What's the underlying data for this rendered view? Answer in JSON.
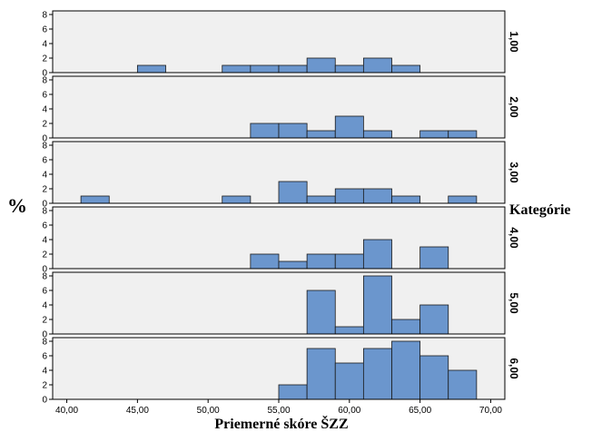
{
  "chart_data": {
    "type": "bar",
    "chart_kind": "histogram-panels",
    "ylabel": "%",
    "xlabel": "Priemerné skóre ŠZZ",
    "legend_title": "Kategórie",
    "xlim": [
      39,
      71
    ],
    "ylim": [
      0,
      8
    ],
    "bin_width": 2,
    "x_ticks": [
      40,
      45,
      50,
      55,
      60,
      65,
      70
    ],
    "x_tick_labels": [
      "40,00",
      "45,00",
      "50,00",
      "55,00",
      "60,00",
      "65,00",
      "70,00"
    ],
    "y_ticks": [
      0,
      2,
      4,
      6,
      8
    ],
    "y_tick_labels": [
      "0",
      "2",
      "4",
      "6",
      "8"
    ],
    "colors": {
      "bar_fill": "#6b96cd",
      "bar_stroke": "#1a1a1a",
      "panel_bg": "#f0f0f0",
      "panel_border": "#000000"
    },
    "panels": [
      {
        "label": "1,00",
        "bins": [
          {
            "x0": 45,
            "v": 1
          },
          {
            "x0": 51,
            "v": 1
          },
          {
            "x0": 53,
            "v": 1
          },
          {
            "x0": 55,
            "v": 1
          },
          {
            "x0": 57,
            "v": 2
          },
          {
            "x0": 59,
            "v": 1
          },
          {
            "x0": 61,
            "v": 2
          },
          {
            "x0": 63,
            "v": 1
          }
        ]
      },
      {
        "label": "2,00",
        "bins": [
          {
            "x0": 53,
            "v": 2
          },
          {
            "x0": 55,
            "v": 2
          },
          {
            "x0": 57,
            "v": 1
          },
          {
            "x0": 59,
            "v": 3
          },
          {
            "x0": 61,
            "v": 1
          },
          {
            "x0": 65,
            "v": 1
          },
          {
            "x0": 67,
            "v": 1
          }
        ]
      },
      {
        "label": "3,00",
        "bins": [
          {
            "x0": 41,
            "v": 1
          },
          {
            "x0": 51,
            "v": 1
          },
          {
            "x0": 55,
            "v": 3
          },
          {
            "x0": 57,
            "v": 1
          },
          {
            "x0": 59,
            "v": 2
          },
          {
            "x0": 61,
            "v": 2
          },
          {
            "x0": 63,
            "v": 1
          },
          {
            "x0": 67,
            "v": 1
          }
        ]
      },
      {
        "label": "4,00",
        "bins": [
          {
            "x0": 53,
            "v": 2
          },
          {
            "x0": 55,
            "v": 1
          },
          {
            "x0": 57,
            "v": 2
          },
          {
            "x0": 59,
            "v": 2
          },
          {
            "x0": 61,
            "v": 4
          },
          {
            "x0": 65,
            "v": 3
          }
        ]
      },
      {
        "label": "5,00",
        "bins": [
          {
            "x0": 57,
            "v": 6
          },
          {
            "x0": 59,
            "v": 1
          },
          {
            "x0": 61,
            "v": 8
          },
          {
            "x0": 63,
            "v": 2
          },
          {
            "x0": 65,
            "v": 4
          }
        ]
      },
      {
        "label": "6,00",
        "bins": [
          {
            "x0": 55,
            "v": 2
          },
          {
            "x0": 57,
            "v": 7
          },
          {
            "x0": 59,
            "v": 5
          },
          {
            "x0": 61,
            "v": 7
          },
          {
            "x0": 63,
            "v": 8
          },
          {
            "x0": 65,
            "v": 6
          },
          {
            "x0": 67,
            "v": 4
          }
        ]
      }
    ]
  }
}
